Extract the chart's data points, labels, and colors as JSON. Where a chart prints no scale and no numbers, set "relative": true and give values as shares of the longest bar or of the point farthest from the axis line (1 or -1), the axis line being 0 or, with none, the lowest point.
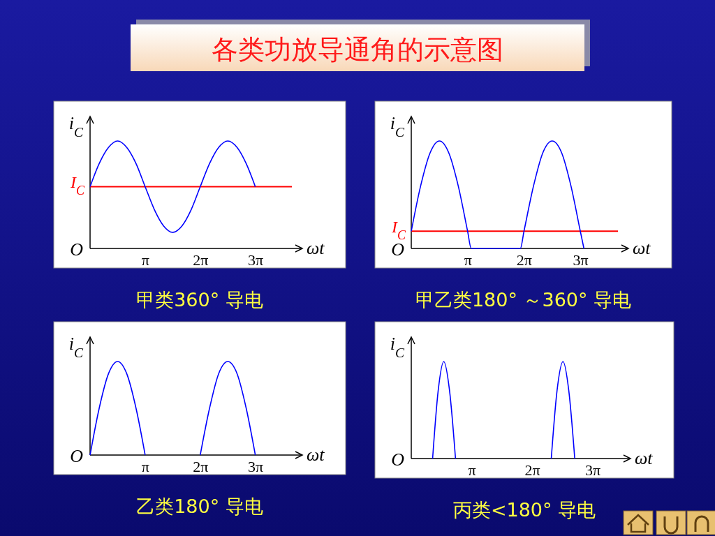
{
  "chart_data": [
    {
      "type": "line",
      "title": "甲类360° 导电",
      "xlabel": "ωt",
      "ylabel": "i$_{C}$",
      "relative": true,
      "annotations": [
        "O",
        "各类功放导通角的示意图"
      ],
      "x": [
        0,
        0.52,
        1.05,
        1.57,
        2.09,
        2.62,
        3.14,
        3.67,
        4.19,
        4.71,
        5.24,
        5.76,
        6.28,
        6.81,
        7.33,
        7.85,
        8.38,
        8.9,
        9.42
      ],
      "values": [
        0.575,
        0.79,
        0.94,
        1,
        0.94,
        0.79,
        0.575,
        0.36,
        0.21,
        0.15,
        0.21,
        0.36,
        0.575,
        0.79,
        0.94,
        1,
        0.94,
        0.79,
        0.575
      ],
      "color": "#0000ff",
      "xlim": [
        0,
        12.1
      ],
      "xticks": [
        {
          "value": 3.14,
          "label": "π"
        },
        {
          "value": 6.28,
          "label": "2π"
        },
        {
          "value": 9.42,
          "label": "3π"
        }
      ],
      "ref_lines": [
        {
          "axis": "y",
          "value": 0.575,
          "label": "I$_{C}$",
          "color": "#ff0000"
        }
      ]
    },
    {
      "type": "line",
      "title": "甲乙类180° ～360° 导电",
      "xlabel": "ωt",
      "ylabel": "i$_{C}$",
      "relative": true,
      "annotations": [
        "O"
      ],
      "x": [
        0,
        0.52,
        1.05,
        1.57,
        2.09,
        2.62,
        3.14,
        3.34,
        6.08,
        6.28,
        6.81,
        7.33,
        7.85,
        8.38,
        8.9,
        9.42,
        9.62
      ],
      "values": [
        0.16,
        0.58,
        0.89,
        1,
        0.89,
        0.58,
        0.16,
        0,
        0,
        0.16,
        0.58,
        0.89,
        1,
        0.89,
        0.58,
        0.16,
        0
      ],
      "color": "#0000ff",
      "xlim": [
        0,
        12.1
      ],
      "xticks": [
        {
          "value": 3.14,
          "label": "π"
        },
        {
          "value": 6.28,
          "label": "2π"
        },
        {
          "value": 9.42,
          "label": "3π"
        }
      ],
      "ref_lines": [
        {
          "axis": "y",
          "value": 0.16,
          "label": "I$_{C}$",
          "color": "#ff0000"
        }
      ]
    },
    {
      "type": "line",
      "title": "乙类180° 导电",
      "xlabel": "ωt",
      "ylabel": "i$_{C}$",
      "relative": true,
      "annotations": [
        "O"
      ],
      "x": [
        0,
        0.52,
        1.05,
        1.57,
        2.09,
        2.62,
        3.14,
        4.71,
        6.28,
        6.81,
        7.33,
        7.85,
        8.38,
        8.9,
        9.42
      ],
      "values": [
        0,
        0.5,
        0.87,
        1,
        0.87,
        0.5,
        0,
        null,
        0,
        0.5,
        0.87,
        1,
        0.87,
        0.5,
        0
      ],
      "color": "#0000ff",
      "xlim": [
        0,
        12.1
      ],
      "xticks": [
        {
          "value": 3.14,
          "label": "π"
        },
        {
          "value": 6.28,
          "label": "2π"
        },
        {
          "value": 9.42,
          "label": "3π"
        }
      ]
    },
    {
      "type": "line",
      "title": "丙类<180° 导电",
      "xlabel": "ωt",
      "ylabel": "i$_{C}$",
      "relative": true,
      "annotations": [
        "O"
      ],
      "x": [
        1.11,
        1.4,
        1.69,
        1.99,
        2.3,
        5,
        7.28,
        7.58,
        7.89,
        8.19,
        8.5
      ],
      "values": [
        0,
        0.7,
        1,
        0.7,
        0,
        null,
        0,
        0.7,
        1,
        0.7,
        0
      ],
      "color": "#0000ff",
      "xlim": [
        0,
        11.4
      ],
      "xticks": [
        {
          "value": 3.14,
          "label": "π"
        },
        {
          "value": 6.28,
          "label": "2π"
        },
        {
          "value": 9.42,
          "label": "3π"
        }
      ]
    }
  ]
}
